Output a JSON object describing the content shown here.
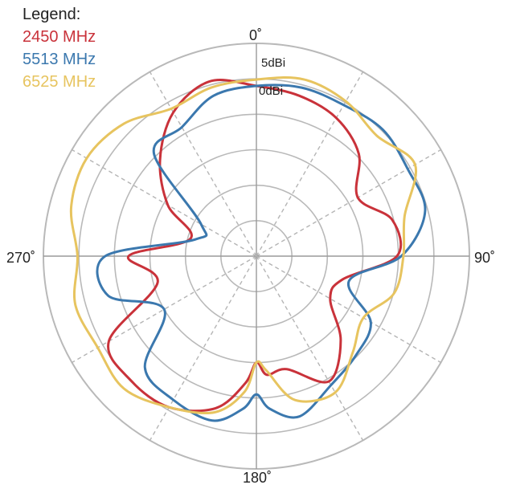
{
  "legend": {
    "title": "Legend:",
    "items": [
      {
        "label": "2450 MHz",
        "color": "#c9323a"
      },
      {
        "label": "5513 MHz",
        "color": "#3b78ae"
      },
      {
        "label": "6525 MHz",
        "color": "#e7c45f"
      }
    ]
  },
  "angle_labels": {
    "top": "0˚",
    "right": "90˚",
    "bottom": "180˚",
    "left": "270˚"
  },
  "ring_labels": {
    "outer": "5dBi",
    "inner": "0dBi"
  },
  "chart_data": {
    "type": "polar-line",
    "theta_unit": "degrees",
    "theta_direction": "clockwise",
    "theta_zero": "top",
    "spoke_step_deg": 30,
    "rings": 6,
    "grid": true,
    "legend_position": "top-left",
    "theta": [
      0,
      15,
      30,
      45,
      60,
      75,
      90,
      105,
      120,
      135,
      150,
      165,
      175,
      180,
      185,
      195,
      210,
      225,
      240,
      255,
      270,
      285,
      300,
      315,
      330,
      345,
      360
    ],
    "series": [
      {
        "name": "2450 MHz",
        "color": "#c9323a",
        "r": [
          0.8,
          0.78,
          0.75,
          0.68,
          0.55,
          0.66,
          0.66,
          0.42,
          0.4,
          0.56,
          0.68,
          0.55,
          0.56,
          0.5,
          0.6,
          0.74,
          0.82,
          0.83,
          0.8,
          0.48,
          0.6,
          0.32,
          0.48,
          0.64,
          0.78,
          0.85,
          0.8
        ]
      },
      {
        "name": "5513 MHz",
        "color": "#3b78ae",
        "r": [
          0.8,
          0.82,
          0.82,
          0.84,
          0.82,
          0.82,
          0.68,
          0.45,
          0.62,
          0.66,
          0.7,
          0.78,
          0.72,
          0.65,
          0.72,
          0.8,
          0.78,
          0.74,
          0.5,
          0.72,
          0.71,
          0.3,
          0.3,
          0.68,
          0.7,
          0.78,
          0.8
        ]
      },
      {
        "name": "6525 MHz",
        "color": "#e7c45f",
        "r": [
          0.83,
          0.86,
          0.84,
          0.8,
          0.86,
          0.72,
          0.69,
          0.67,
          0.58,
          0.64,
          0.74,
          0.7,
          0.54,
          0.5,
          0.64,
          0.76,
          0.82,
          0.88,
          0.86,
          0.88,
          0.84,
          0.9,
          0.92,
          0.88,
          0.8,
          0.82,
          0.83
        ]
      }
    ]
  }
}
